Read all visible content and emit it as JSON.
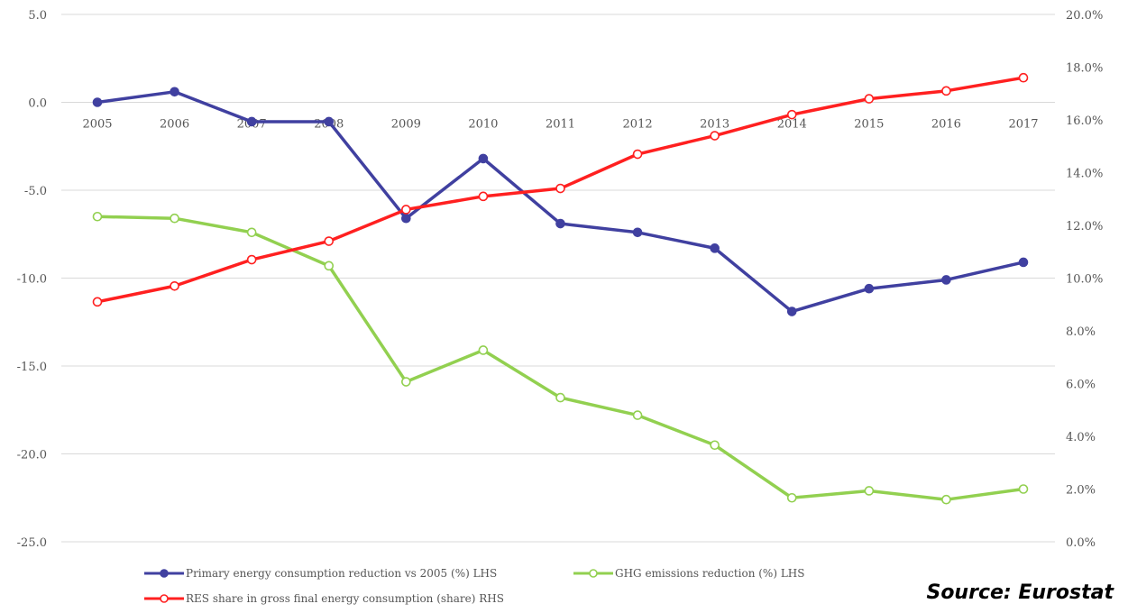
{
  "chart_data": {
    "type": "line",
    "title": "",
    "categories": [
      "2005",
      "2006",
      "2007",
      "2008",
      "2009",
      "2010",
      "2011",
      "2012",
      "2013",
      "2014",
      "2015",
      "2016",
      "2017"
    ],
    "left_axis": {
      "ylim": [
        -25,
        5
      ],
      "ticks": [
        "5.0",
        "0.0",
        "-5.0",
        "-10.0",
        "-15.0",
        "-20.0",
        "-25.0"
      ],
      "tick_values": [
        5,
        0,
        -5,
        -10,
        -15,
        -20,
        -25
      ]
    },
    "right_axis": {
      "ylim": [
        0,
        20
      ],
      "ticks": [
        "20.0%",
        "18.0%",
        "16.0%",
        "14.0%",
        "12.0%",
        "10.0%",
        "8.0%",
        "6.0%",
        "4.0%",
        "2.0%",
        "0.0%"
      ],
      "tick_values": [
        20,
        18,
        16,
        14,
        12,
        10,
        8,
        6,
        4,
        2,
        0
      ]
    },
    "grid": true,
    "legend_position": "bottom",
    "series": [
      {
        "name": "Primary energy consumption reduction vs 2005 (%) LHS",
        "axis": "left",
        "color": "#4040a0",
        "marker": "filled",
        "values": [
          0.0,
          0.6,
          -1.1,
          -1.1,
          -6.6,
          -3.2,
          -6.9,
          -7.4,
          -8.3,
          -11.9,
          -10.6,
          -10.1,
          -9.1
        ]
      },
      {
        "name": "GHG emissions reduction (%) LHS",
        "axis": "left",
        "color": "#92d050",
        "marker": "hollow",
        "values": [
          -6.5,
          -6.6,
          -7.4,
          -9.3,
          -15.9,
          -14.1,
          -16.8,
          -17.8,
          -19.5,
          -22.5,
          -22.1,
          -22.6,
          -22.0
        ]
      },
      {
        "name": "RES share in gross final energy consumption (share) RHS",
        "axis": "right",
        "color": "#ff2020",
        "marker": "hollow",
        "values": [
          9.1,
          9.7,
          10.7,
          11.4,
          12.6,
          13.1,
          13.4,
          14.7,
          15.4,
          16.2,
          16.8,
          17.1,
          17.6
        ]
      }
    ]
  },
  "source": {
    "label": "Source: Eurostat"
  }
}
